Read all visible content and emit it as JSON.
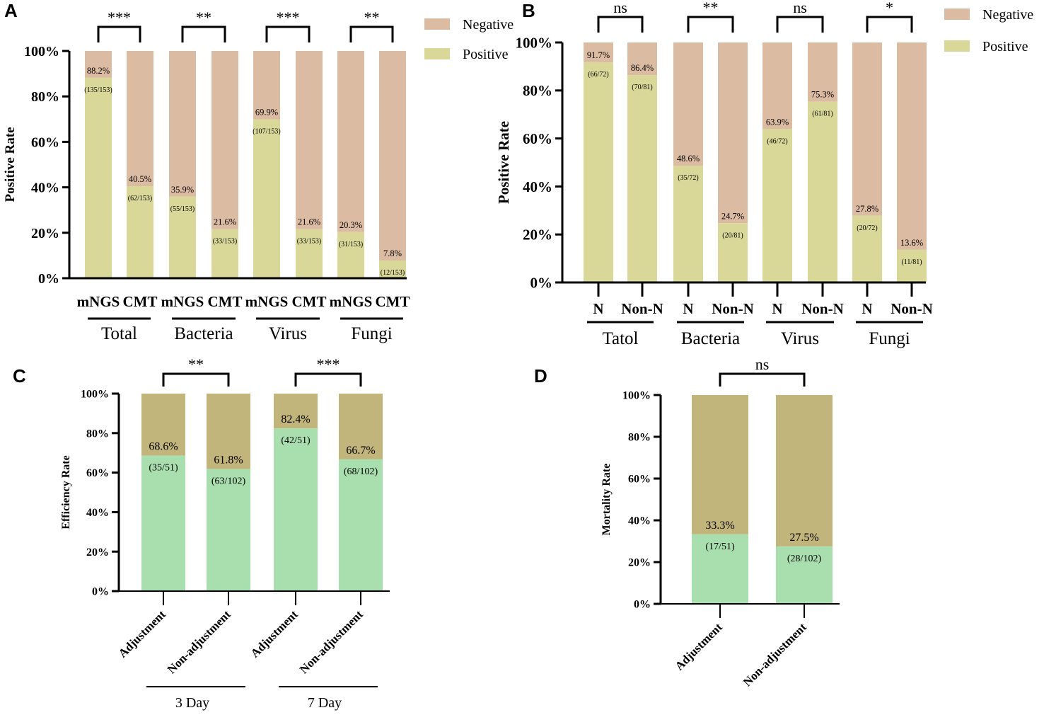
{
  "colors": {
    "a_negative": "#dcbba3",
    "a_positive": "#d9d899",
    "c_top": "#c1b57b",
    "c_bottom": "#a9dfaf",
    "axis": "#000000"
  },
  "chart_data": [
    {
      "panel": "A",
      "type": "bar",
      "stacked": true,
      "ylabel": "Positive Rate",
      "ylim": [
        0,
        100
      ],
      "yticks": [
        "0%",
        "20%",
        "40%",
        "60%",
        "80%",
        "100%"
      ],
      "categories": [
        "mNGS",
        "CMT",
        "mNGS",
        "CMT",
        "mNGS",
        "CMT",
        "mNGS",
        "CMT"
      ],
      "groups": [
        "Total",
        "Bacteria",
        "Virus",
        "Fungi"
      ],
      "series": [
        {
          "name": "Positive",
          "values": [
            88.2,
            40.5,
            35.9,
            21.6,
            69.9,
            21.6,
            20.3,
            7.8
          ]
        },
        {
          "name": "Negative",
          "values": [
            11.8,
            59.5,
            64.1,
            78.4,
            30.1,
            78.4,
            79.7,
            92.2
          ]
        }
      ],
      "bar_labels": [
        "88.2%",
        "40.5%",
        "35.9%",
        "21.6%",
        "69.9%",
        "21.6%",
        "20.3%",
        "7.8%"
      ],
      "bar_counts": [
        "(135/153)",
        "(62/153)",
        "(55/153)",
        "(33/153)",
        "(107/153)",
        "(33/153)",
        "(31/153)",
        "(12/153)"
      ],
      "significance": [
        "***",
        "**",
        "***",
        "**"
      ],
      "legend": [
        "Negative",
        "Positive"
      ]
    },
    {
      "panel": "B",
      "type": "bar",
      "stacked": true,
      "ylabel": "Positive Rate",
      "ylim": [
        0,
        100
      ],
      "yticks": [
        "0%",
        "20%",
        "40%",
        "60%",
        "80%",
        "100%"
      ],
      "categories": [
        "N",
        "Non-N",
        "N",
        "Non-N",
        "N",
        "Non-N",
        "N",
        "Non-N"
      ],
      "groups": [
        "Tatol",
        "Bacteria",
        "Virus",
        "Fungi"
      ],
      "series": [
        {
          "name": "Positive",
          "values": [
            91.7,
            86.4,
            48.6,
            24.7,
            63.9,
            75.3,
            27.8,
            13.6
          ]
        },
        {
          "name": "Negative",
          "values": [
            8.3,
            13.6,
            51.4,
            75.3,
            36.1,
            24.7,
            72.2,
            86.4
          ]
        }
      ],
      "bar_labels": [
        "91.7%",
        "86.4%",
        "48.6%",
        "24.7%",
        "63.9%",
        "75.3%",
        "27.8%",
        "13.6%"
      ],
      "bar_counts": [
        "(66/72)",
        "(70/81)",
        "(35/72)",
        "(20/81)",
        "(46/72)",
        "(61/81)",
        "(20/72)",
        "(11/81)"
      ],
      "significance": [
        "ns",
        "**",
        "ns",
        "*"
      ],
      "legend": [
        "Negative",
        "Positive"
      ]
    },
    {
      "panel": "C",
      "type": "bar",
      "stacked": true,
      "ylabel": "Efficiency Rate",
      "ylim": [
        0,
        100
      ],
      "yticks": [
        "0%",
        "20%",
        "40%",
        "60%",
        "80%",
        "100%"
      ],
      "categories": [
        "Adjustment",
        "Non-adjustment",
        "Adjustment",
        "Non-adjustment"
      ],
      "groups": [
        "3 Day",
        "7 Day"
      ],
      "values": [
        68.6,
        61.8,
        82.4,
        66.7
      ],
      "bar_labels": [
        "68.6%",
        "61.8%",
        "82.4%",
        "66.7%"
      ],
      "bar_counts": [
        "(35/51)",
        "(63/102)",
        "(42/51)",
        "(68/102)"
      ],
      "significance": [
        "**",
        "***"
      ]
    },
    {
      "panel": "D",
      "type": "bar",
      "stacked": true,
      "ylabel": "Mortality  Rate",
      "ylim": [
        0,
        100
      ],
      "yticks": [
        "0%",
        "20%",
        "40%",
        "60%",
        "80%",
        "100%"
      ],
      "categories": [
        "Adjustment",
        "Non-adjustment"
      ],
      "values": [
        33.3,
        27.5
      ],
      "bar_labels": [
        "33.3%",
        "27.5%"
      ],
      "bar_counts": [
        "(17/51)",
        "(28/102)"
      ],
      "significance": [
        "ns"
      ]
    }
  ]
}
